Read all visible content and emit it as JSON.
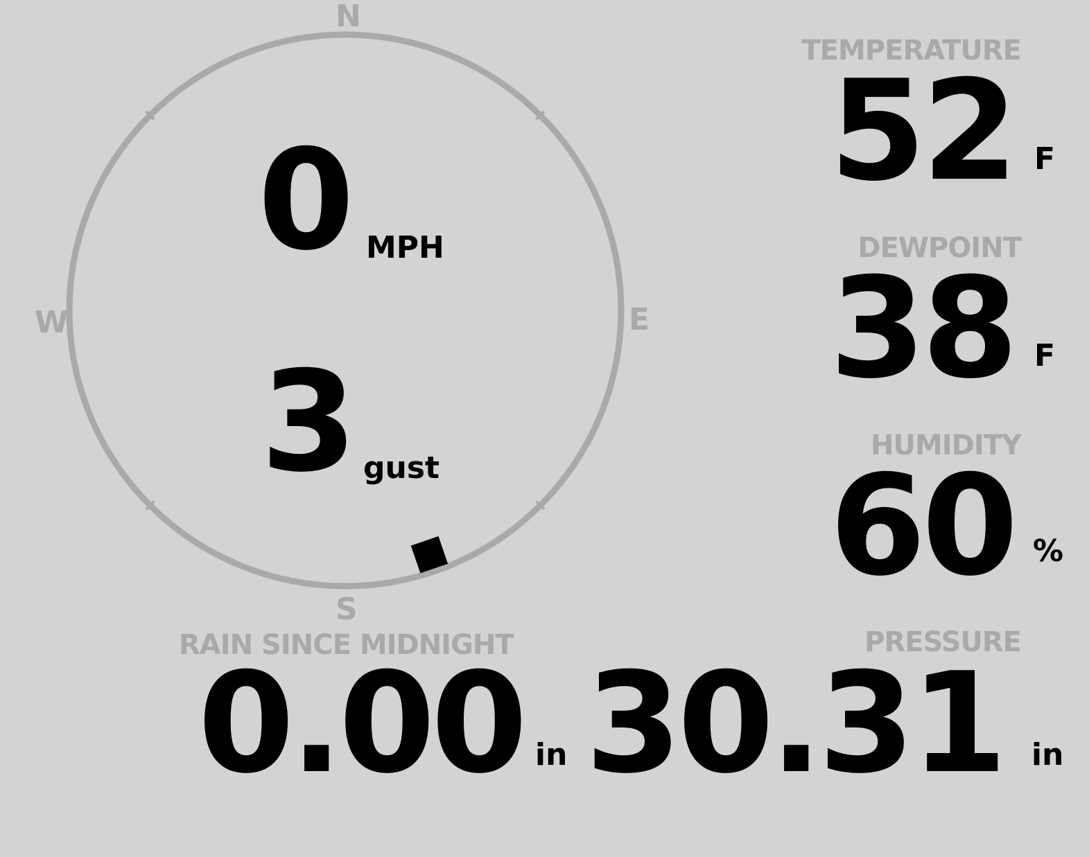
{
  "colors": {
    "background": "#d3d3d3",
    "label": "#a9a9a9",
    "value": "#000000"
  },
  "wind": {
    "compass": {
      "n": "N",
      "e": "E",
      "s": "S",
      "w": "W"
    },
    "speed": "0",
    "speed_unit": "MPH",
    "gust": "3",
    "gust_unit": "gust",
    "direction_deg": 161
  },
  "temperature": {
    "label": "TEMPERATURE",
    "value": "52",
    "unit": "F"
  },
  "dewpoint": {
    "label": "DEWPOINT",
    "value": "38",
    "unit": "F"
  },
  "humidity": {
    "label": "HUMIDITY",
    "value": "60",
    "unit": "%"
  },
  "rain": {
    "label": "RAIN SINCE MIDNIGHT",
    "value": "0.00",
    "unit": "in"
  },
  "pressure": {
    "label": "PRESSURE",
    "value": "30.31",
    "unit": "in"
  }
}
